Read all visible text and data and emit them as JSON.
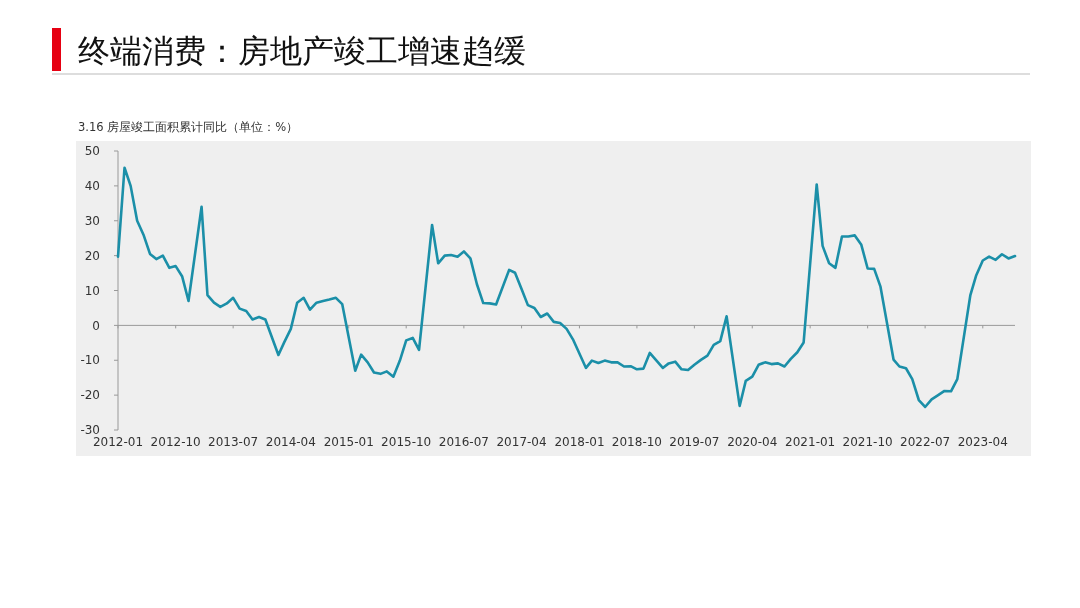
{
  "chart_data": {
    "type": "line",
    "title": "终端消费：房地产竣工增速趋缓",
    "subtitle": "3.16 房屋竣工面积累计同比（单位：%）",
    "x": [
      "2012-01",
      "2012-02",
      "2012-03",
      "2012-04",
      "2012-05",
      "2012-06",
      "2012-07",
      "2012-08",
      "2012-09",
      "2012-10",
      "2012-11",
      "2012-12",
      "2013-02",
      "2013-03",
      "2013-04",
      "2013-05",
      "2013-06",
      "2013-07",
      "2013-08",
      "2013-09",
      "2013-10",
      "2013-11",
      "2013-12",
      "2014-02",
      "2014-03",
      "2014-04",
      "2014-05",
      "2014-06",
      "2014-07",
      "2014-08",
      "2014-09",
      "2014-10",
      "2014-11",
      "2014-12",
      "2015-02",
      "2015-03",
      "2015-04",
      "2015-05",
      "2015-06",
      "2015-07",
      "2015-08",
      "2015-09",
      "2015-10",
      "2015-11",
      "2015-12",
      "2016-02",
      "2016-03",
      "2016-04",
      "2016-05",
      "2016-06",
      "2016-07",
      "2016-08",
      "2016-09",
      "2016-10",
      "2016-11",
      "2016-12",
      "2017-02",
      "2017-03",
      "2017-04",
      "2017-05",
      "2017-06",
      "2017-07",
      "2017-08",
      "2017-09",
      "2017-10",
      "2017-11",
      "2017-12",
      "2018-02",
      "2018-03",
      "2018-04",
      "2018-05",
      "2018-06",
      "2018-07",
      "2018-08",
      "2018-09",
      "2018-10",
      "2018-11",
      "2018-12",
      "2019-02",
      "2019-03",
      "2019-04",
      "2019-05",
      "2019-06",
      "2019-07",
      "2019-08",
      "2019-09",
      "2019-10",
      "2019-11",
      "2019-12",
      "2020-02",
      "2020-03",
      "2020-04",
      "2020-05",
      "2020-06",
      "2020-07",
      "2020-08",
      "2020-09",
      "2020-10",
      "2020-11",
      "2020-12",
      "2021-02",
      "2021-03",
      "2021-04",
      "2021-05",
      "2021-06",
      "2021-07",
      "2021-08",
      "2021-09",
      "2021-10",
      "2021-11",
      "2021-12",
      "2022-02",
      "2022-03",
      "2022-04",
      "2022-05",
      "2022-06",
      "2022-07",
      "2022-08",
      "2022-09",
      "2022-10",
      "2022-11",
      "2022-12",
      "2023-02",
      "2023-03",
      "2023-04",
      "2023-05",
      "2023-06",
      "2023-07",
      "2023-08",
      "2023-09"
    ],
    "series": [
      {
        "color": "#1b8fa8",
        "values": [
          19.7,
          45.2,
          40,
          30,
          26,
          20.5,
          19,
          20,
          16.5,
          17,
          14,
          7,
          34,
          8.7,
          6.5,
          5.3,
          6.3,
          7.9,
          4.8,
          4.1,
          1.7,
          2.4,
          1.7,
          -8.5,
          -4.8,
          -1,
          6.5,
          7.9,
          4.5,
          6.5,
          7,
          7.4,
          7.9,
          6.1,
          -13,
          -8.4,
          -10.6,
          -13.5,
          -13.9,
          -13.2,
          -14.7,
          -10.1,
          -4.3,
          -3.6,
          -7,
          28.8,
          17.8,
          20,
          20.2,
          19.7,
          21.2,
          19.2,
          11.8,
          6.4,
          6.3,
          6,
          15.9,
          15.1,
          10.4,
          5.8,
          5,
          2.4,
          3.4,
          1,
          0.7,
          -1,
          -4,
          -12.2,
          -10.1,
          -10.8,
          -10.1,
          -10.6,
          -10.6,
          -11.8,
          -11.7,
          -12.6,
          -12.4,
          -7.9,
          -12.2,
          -10.9,
          -10.4,
          -12.6,
          -12.8,
          -11.3,
          -9.9,
          -8.7,
          -5.6,
          -4.5,
          2.6,
          -23.1,
          -15.9,
          -14.7,
          -11.3,
          -10.6,
          -11.1,
          -10.9,
          -11.8,
          -9.6,
          -7.7,
          -4.9,
          40.4,
          22.8,
          17.8,
          16.5,
          25.5,
          25.5,
          25.8,
          23.1,
          16.3,
          16.2,
          11.1,
          -9.8,
          -11.8,
          -12.3,
          -15.4,
          -21.4,
          -23.4,
          -21.2,
          -20,
          -18.8,
          -18.9,
          -15.4,
          8.7,
          14.4,
          18.6,
          19.7,
          18.8,
          20.4,
          19.2,
          19.9
        ]
      }
    ],
    "xlim": [
      "2012-01",
      "2023-09"
    ],
    "xticks": [
      "2012-01",
      "2012-10",
      "2013-07",
      "2014-04",
      "2015-01",
      "2015-10",
      "2016-07",
      "2017-04",
      "2018-01",
      "2018-10",
      "2019-07",
      "2020-04",
      "2021-01",
      "2021-10",
      "2022-07",
      "2023-04"
    ],
    "ylim": [
      -30,
      50
    ],
    "yticks": [
      -30,
      -20,
      -10,
      0,
      10,
      20,
      30,
      40,
      50
    ],
    "marker": "none",
    "line_style": "solid"
  }
}
